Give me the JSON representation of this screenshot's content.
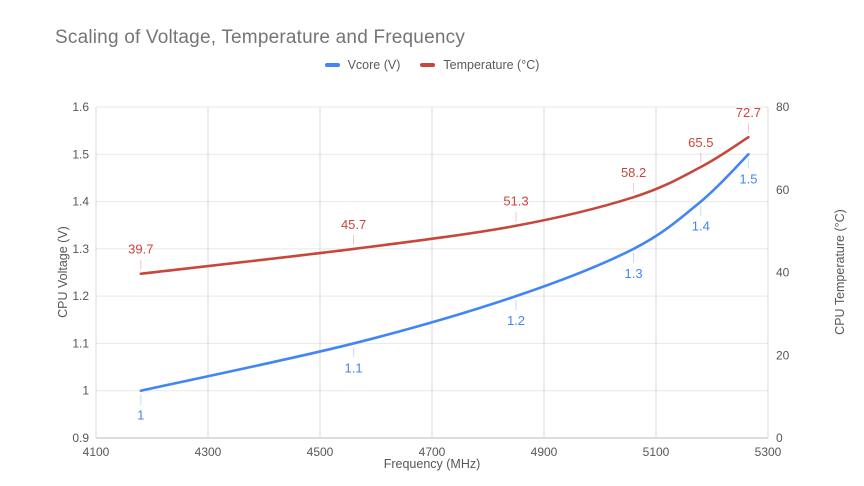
{
  "title": "Scaling of Voltage, Temperature and Frequency",
  "legend": {
    "items": [
      {
        "key": "vcore",
        "label": "Vcore (V)",
        "color": "#4285F4"
      },
      {
        "key": "temperature",
        "label": "Temperature (°C)",
        "color": "#C8473C"
      }
    ]
  },
  "axes": {
    "left_title": "CPU Voltage (V)",
    "right_title": "CPU Temperature (°C)",
    "bottom_title": "Frequency (MHz)"
  },
  "chart_data": {
    "type": "line",
    "title": "Scaling of Voltage, Temperature and Frequency",
    "xlabel": "Frequency (MHz)",
    "xlim": [
      4100,
      5300
    ],
    "x_ticks": [
      4100,
      4300,
      4500,
      4700,
      4900,
      5100,
      5300
    ],
    "x_tick_labels": [
      "4100",
      "4300",
      "4500",
      "4700",
      "4900",
      "5100",
      "5300"
    ],
    "x": [
      4180,
      4560,
      4850,
      5060,
      5180,
      5265
    ],
    "grid": true,
    "legend_position": "top",
    "smooth_lines": true,
    "left_axis": {
      "label": "CPU Voltage (V)",
      "min": 0.9,
      "max": 1.6,
      "ticks": [
        0.9,
        1.0,
        1.1,
        1.2,
        1.3,
        1.4,
        1.5,
        1.6
      ],
      "tick_labels": [
        "0.9",
        "1",
        "1.1",
        "1.2",
        "1.3",
        "1.4",
        "1.5",
        "1.6"
      ]
    },
    "right_axis": {
      "label": "CPU Temperature (°C)",
      "min": 0,
      "max": 80,
      "ticks": [
        0,
        20,
        40,
        60,
        80
      ],
      "tick_labels": [
        "0",
        "20",
        "40",
        "60",
        "80"
      ]
    },
    "series": [
      {
        "key": "vcore-line",
        "name": "Vcore (V)",
        "axis": "left",
        "color": "#4285F4",
        "values": [
          1.0,
          1.1,
          1.2,
          1.3,
          1.4,
          1.5
        ],
        "labels": [
          "1",
          "1.1",
          "1.2",
          "1.3",
          "1.4",
          "1.5"
        ],
        "label_side": "below"
      },
      {
        "key": "temperature-line",
        "name": "Temperature (°C)",
        "axis": "right",
        "color": "#C8473C",
        "values": [
          39.7,
          45.7,
          51.3,
          58.2,
          65.5,
          72.7
        ],
        "labels": [
          "39.7",
          "45.7",
          "51.3",
          "58.2",
          "65.5",
          "72.7"
        ],
        "label_side": "above"
      }
    ],
    "style": {
      "grid_h_color": "#e8e8e8",
      "grid_v_color": "#d8d8d8",
      "axis_line_color": "#b7b7b7",
      "tick_text_color": "#575757",
      "title_color": "#757575"
    }
  }
}
